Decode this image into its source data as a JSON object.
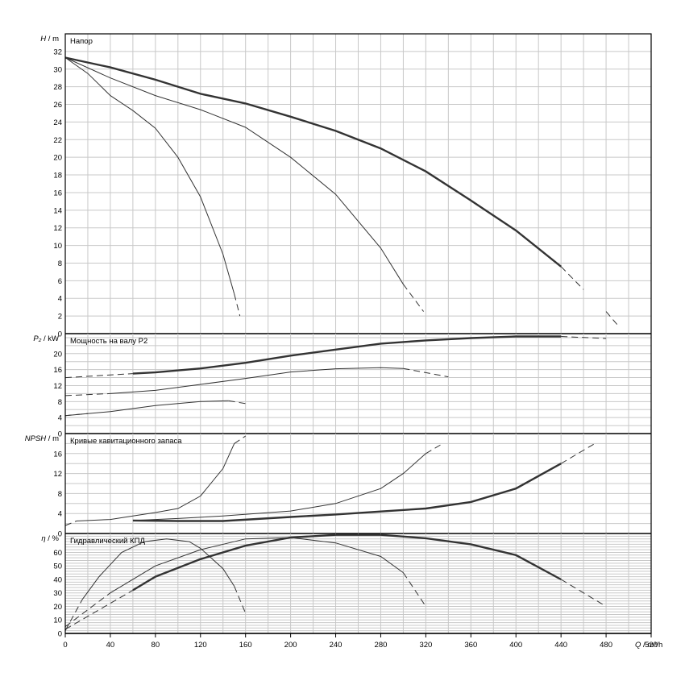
{
  "chart_data": [
    {
      "type": "line",
      "title": "Напор",
      "ylabel_var": "H",
      "ylabel_unit": "m",
      "ylim": [
        0,
        34
      ],
      "yticks": [
        "0",
        "2",
        "4",
        "6",
        "8",
        "10",
        "12",
        "14",
        "16",
        "18",
        "20",
        "22",
        "24",
        "26",
        "28",
        "30",
        "32"
      ],
      "series": [
        {
          "weight": "thin",
          "solid": [
            [
              0,
              31.3
            ],
            [
              20,
              29.5
            ],
            [
              40,
              27
            ],
            [
              60,
              25.3
            ],
            [
              80,
              23.3
            ],
            [
              100,
              20
            ],
            [
              120,
              15.5
            ],
            [
              140,
              9
            ],
            [
              150,
              4.5
            ]
          ],
          "dashed": [
            [
              150,
              4.5
            ],
            [
              155,
              2
            ],
            [
              163,
              0
            ]
          ]
        },
        {
          "weight": "thin",
          "solid": [
            [
              0,
              31.3
            ],
            [
              40,
              29
            ],
            [
              80,
              27
            ],
            [
              120,
              25.4
            ],
            [
              160,
              23.4
            ],
            [
              200,
              20
            ],
            [
              240,
              15.8
            ],
            [
              280,
              9.7
            ],
            [
              300,
              5.6
            ]
          ],
          "dashed": [
            [
              300,
              5.6
            ],
            [
              318,
              2.5
            ],
            [
              330,
              0
            ]
          ]
        },
        {
          "weight": "thick",
          "solid": [
            [
              0,
              31.3
            ],
            [
              40,
              30.2
            ],
            [
              80,
              28.8
            ],
            [
              120,
              27.2
            ],
            [
              160,
              26.1
            ],
            [
              200,
              24.6
            ],
            [
              240,
              23
            ],
            [
              280,
              21
            ],
            [
              320,
              18.4
            ],
            [
              360,
              15.1
            ],
            [
              400,
              11.7
            ],
            [
              440,
              7.6
            ]
          ],
          "dashed": [
            [
              440,
              7.6
            ],
            [
              460,
              5
            ],
            [
              480,
              2.5
            ],
            [
              490,
              1
            ]
          ]
        }
      ]
    },
    {
      "type": "line",
      "title": "Мощность на валу P2",
      "ylabel_var": "P₂",
      "ylabel_unit": "kW",
      "ylim": [
        0,
        25
      ],
      "yticks": [
        "0",
        "4",
        "8",
        "12",
        "16",
        "20"
      ],
      "series": [
        {
          "weight": "thin",
          "solid": [
            [
              0,
              4.5
            ],
            [
              40,
              5.5
            ],
            [
              80,
              7
            ],
            [
              120,
              8
            ],
            [
              145,
              8.2
            ]
          ],
          "dashed": [
            [
              0,
              4.5
            ],
            [
              20,
              5
            ],
            [
              145,
              8.2
            ],
            [
              160,
              7.5
            ]
          ]
        },
        {
          "weight": "thin",
          "solid": [
            [
              40,
              10
            ],
            [
              80,
              10.8
            ],
            [
              120,
              12.3
            ],
            [
              160,
              13.8
            ],
            [
              200,
              15.4
            ],
            [
              240,
              16.2
            ],
            [
              280,
              16.5
            ],
            [
              300,
              16.3
            ]
          ],
          "dashed": [
            [
              0,
              9.5
            ],
            [
              40,
              10
            ],
            [
              300,
              16.3
            ],
            [
              340,
              14.2
            ]
          ]
        },
        {
          "weight": "thick",
          "solid": [
            [
              60,
              15
            ],
            [
              80,
              15.3
            ],
            [
              120,
              16.3
            ],
            [
              160,
              17.7
            ],
            [
              200,
              19.5
            ],
            [
              240,
              21
            ],
            [
              280,
              22.5
            ],
            [
              320,
              23.3
            ],
            [
              360,
              23.9
            ],
            [
              400,
              24.3
            ],
            [
              440,
              24.3
            ]
          ],
          "dashed": [
            [
              0,
              14
            ],
            [
              60,
              15
            ],
            [
              440,
              24.3
            ],
            [
              480,
              23.8
            ],
            [
              510,
              21.8
            ]
          ]
        }
      ]
    },
    {
      "type": "line",
      "title": "Кривые кавитационного запаса",
      "ylabel_var": "NPSH",
      "ylabel_unit": "m",
      "ylim": [
        0,
        20
      ],
      "yticks": [
        "0",
        "4",
        "8",
        "12",
        "16"
      ],
      "series": [
        {
          "weight": "thin",
          "solid": [
            [
              10,
              2.5
            ],
            [
              40,
              2.8
            ],
            [
              60,
              3.5
            ],
            [
              80,
              4.2
            ],
            [
              100,
              5
            ],
            [
              120,
              7.5
            ],
            [
              140,
              13
            ],
            [
              150,
              18
            ]
          ],
          "dashed": [
            [
              0,
              1.6
            ],
            [
              10,
              2.5
            ],
            [
              150,
              18
            ],
            [
              160,
              19.5
            ]
          ]
        },
        {
          "weight": "thin",
          "solid": [
            [
              60,
              2.6
            ],
            [
              100,
              3
            ],
            [
              140,
              3.5
            ],
            [
              200,
              4.5
            ],
            [
              240,
              6
            ],
            [
              280,
              9
            ],
            [
              300,
              12
            ],
            [
              320,
              16
            ]
          ],
          "dashed": [
            [
              320,
              16
            ],
            [
              335,
              18
            ],
            [
              350,
              19.5
            ]
          ]
        },
        {
          "weight": "thick",
          "solid": [
            [
              60,
              2.6
            ],
            [
              100,
              2.5
            ],
            [
              140,
              2.5
            ],
            [
              200,
              3.3
            ],
            [
              240,
              3.8
            ],
            [
              280,
              4.4
            ],
            [
              320,
              5
            ],
            [
              360,
              6.3
            ],
            [
              400,
              9
            ],
            [
              440,
              14
            ]
          ],
          "dashed": [
            [
              440,
              14
            ],
            [
              470,
              18
            ],
            [
              480,
              19.5
            ]
          ]
        }
      ]
    },
    {
      "type": "line",
      "title": "Гидравлический КПД",
      "ylabel_var": "η",
      "ylabel_unit": "%",
      "xlabel_var": "Q",
      "xlabel_unit": "m³/h",
      "ylim": [
        0,
        74
      ],
      "xlim": [
        0,
        520
      ],
      "xticks": [
        "0",
        "40",
        "80",
        "120",
        "160",
        "200",
        "240",
        "280",
        "320",
        "360",
        "400",
        "440",
        "480",
        "520"
      ],
      "yticks": [
        "0",
        "10",
        "20",
        "30",
        "40",
        "50",
        "60"
      ],
      "series": [
        {
          "weight": "thin",
          "solid": [
            [
              15,
              25
            ],
            [
              30,
              42
            ],
            [
              50,
              60
            ],
            [
              70,
              68
            ],
            [
              90,
              70
            ],
            [
              110,
              68
            ],
            [
              120,
              63
            ],
            [
              140,
              48
            ],
            [
              150,
              35
            ]
          ],
          "dashed": [
            [
              0,
              2
            ],
            [
              15,
              25
            ],
            [
              150,
              35
            ],
            [
              160,
              15
            ],
            [
              165,
              0
            ]
          ]
        },
        {
          "weight": "thin",
          "solid": [
            [
              40,
              30
            ],
            [
              80,
              50
            ],
            [
              120,
              62
            ],
            [
              160,
              70
            ],
            [
              200,
              71
            ],
            [
              240,
              67
            ],
            [
              280,
              57
            ],
            [
              300,
              45
            ]
          ],
          "dashed": [
            [
              0,
              5
            ],
            [
              40,
              30
            ],
            [
              300,
              45
            ],
            [
              320,
              20
            ],
            [
              330,
              0
            ]
          ]
        },
        {
          "weight": "thick",
          "solid": [
            [
              60,
              32
            ],
            [
              80,
              42
            ],
            [
              120,
              55
            ],
            [
              160,
              65
            ],
            [
              200,
              71
            ],
            [
              240,
              73
            ],
            [
              280,
              73
            ],
            [
              320,
              70.5
            ],
            [
              360,
              66
            ],
            [
              400,
              58
            ],
            [
              440,
              40
            ]
          ],
          "dashed": [
            [
              0,
              3
            ],
            [
              60,
              32
            ],
            [
              440,
              40
            ],
            [
              480,
              20
            ],
            [
              490,
              5
            ]
          ]
        }
      ]
    }
  ]
}
